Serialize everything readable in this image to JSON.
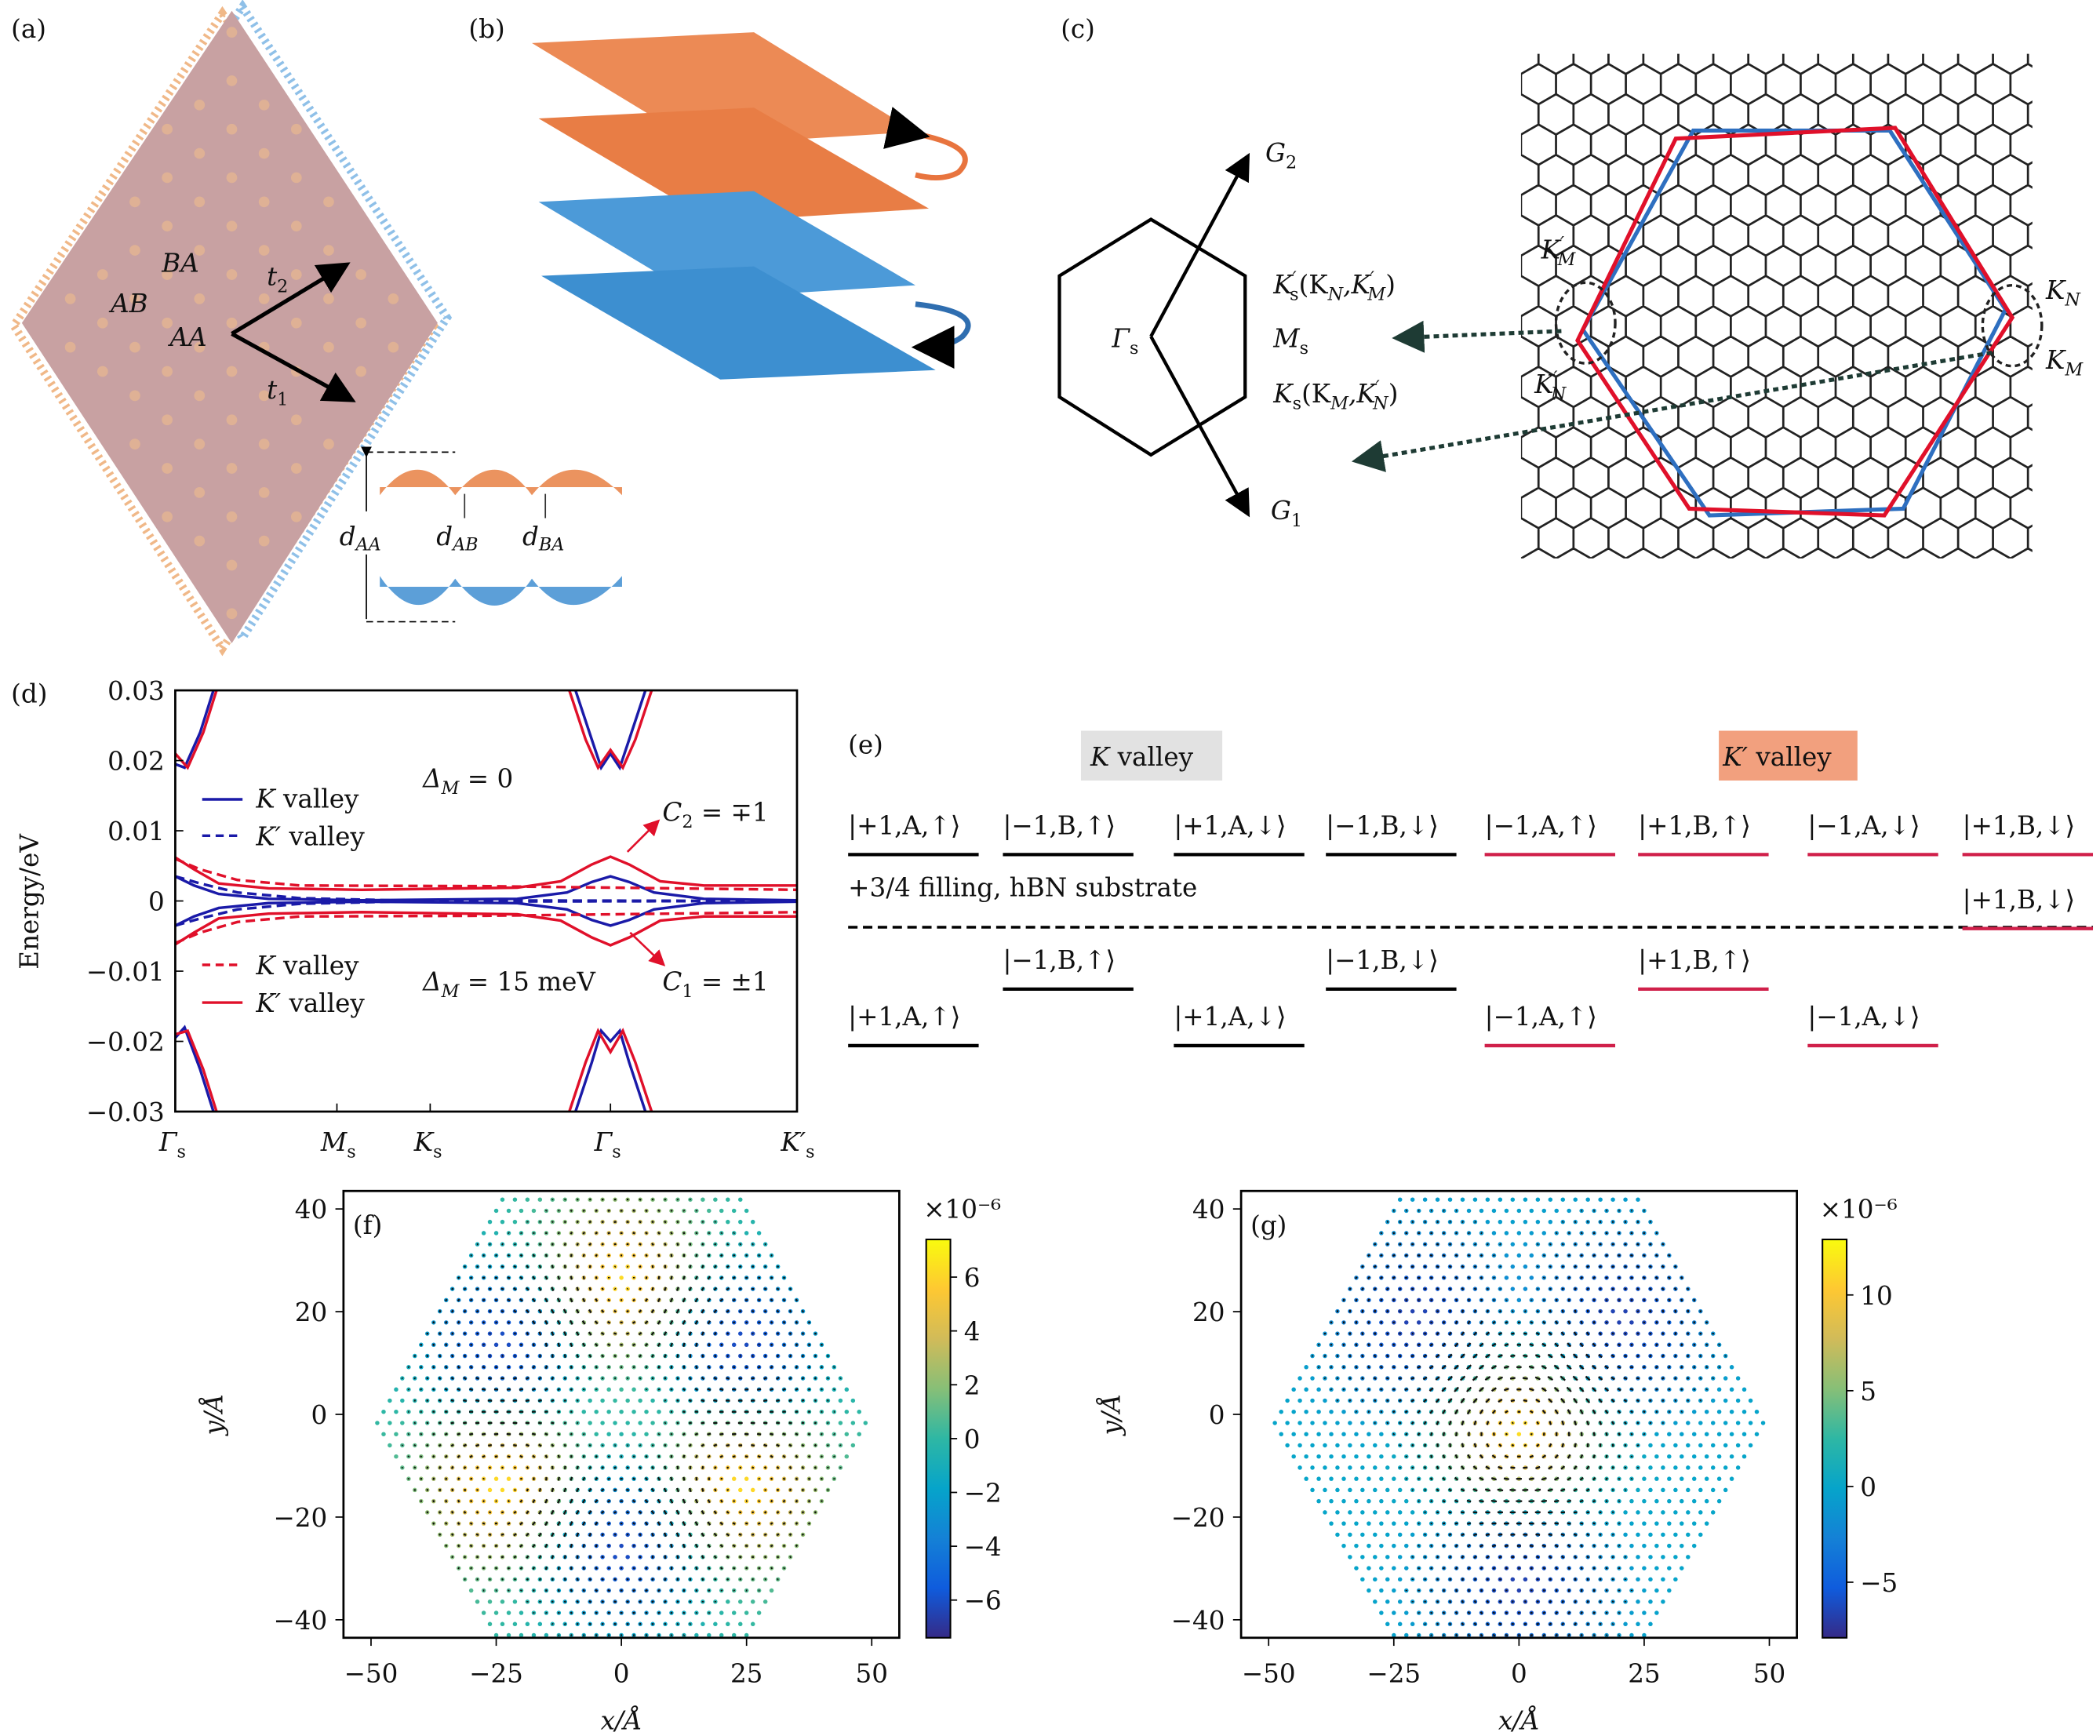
{
  "panels": {
    "a": {
      "label": "(a)",
      "regions": [
        "BA",
        "AB",
        "AA"
      ],
      "vectors": [
        "t",
        "2",
        "t",
        "1"
      ],
      "distances": {
        "d_AA": [
          "d",
          "AA"
        ],
        "d_AB": [
          "d",
          "AB"
        ],
        "d_BA": [
          "d",
          "BA"
        ]
      }
    },
    "b": {
      "label": "(b)"
    },
    "c": {
      "label": "(c)",
      "G2": [
        "G",
        "2"
      ],
      "G1": [
        "G",
        "1"
      ],
      "gamma": [
        "Γ",
        "s"
      ],
      "Kps": [
        "K",
        "′",
        "s",
        "(K",
        "N",
        ",K",
        "′",
        "M",
        ")"
      ],
      "Ms": [
        "M",
        "s"
      ],
      "Ks": [
        "K",
        "s",
        "(K",
        "M",
        ",K",
        "′",
        "N",
        ")"
      ],
      "KpM": [
        "K",
        "′",
        "M"
      ],
      "KpN": [
        "K",
        "′",
        "N"
      ],
      "KN": [
        "K",
        "N"
      ],
      "KM": [
        "K",
        "M"
      ]
    },
    "d": {
      "label": "(d)",
      "legend": {
        "delta0": [
          "Δ",
          "M",
          " = 0"
        ],
        "delta15": [
          "Δ",
          "M",
          " = 15 meV"
        ],
        "k_valley": [
          "K",
          " valley"
        ],
        "kp_valley": [
          "K′",
          " valley"
        ]
      },
      "C2": [
        "C",
        "2",
        " = ∓1"
      ],
      "C1": [
        "C",
        "1",
        " = ±1"
      ]
    },
    "e": {
      "label": "(e)",
      "k_valley": [
        "K",
        " valley"
      ],
      "kp_valley": [
        "K′",
        " valley"
      ],
      "filling": "+3/4 filling, hBN substrate",
      "top_row": [
        "|+1,A,↑⟩",
        "|−1,B,↑⟩",
        "|+1,A,↓⟩",
        "|−1,B,↓⟩",
        "|−1,A,↑⟩",
        "|+1,B,↑⟩",
        "|−1,A,↓⟩",
        "|+1,B,↓⟩"
      ],
      "upper_state": "|+1,B,↓⟩",
      "lower_row_1": [
        "|−1,B,↑⟩",
        "|−1,B,↓⟩",
        "|+1,B,↑⟩"
      ],
      "lower_row_2": [
        "|+1,A,↑⟩",
        "|+1,A,↓⟩",
        "|−1,A,↑⟩",
        "|−1,A,↓⟩"
      ]
    },
    "f": {
      "label": "(f)"
    },
    "g": {
      "label": "(g)"
    }
  },
  "colors": {
    "k_valley": "#1a1aa8",
    "kp_valley": "#e0102a",
    "orange": "#e8834e",
    "blue": "#3d8fd0",
    "k_box": "#e2e2e2",
    "kp_box": "#f2a07e"
  },
  "chart_data": [
    {
      "type": "line",
      "panel": "d",
      "ylabel": "Energy/eV",
      "xlabel": "",
      "ylim": [
        -0.03,
        0.03
      ],
      "yticks": [
        "0.03",
        "0.02",
        "0.01",
        "0",
        "−0.01",
        "−0.02",
        "−0.03"
      ],
      "ytick_values": [
        0.03,
        0.02,
        0.01,
        0,
        -0.01,
        -0.02,
        -0.03
      ],
      "xticks": [
        [
          "Γ",
          "s"
        ],
        [
          "M",
          "s"
        ],
        [
          "K",
          "s"
        ],
        [
          "Γ",
          "s"
        ],
        [
          "K′",
          "s"
        ]
      ],
      "xtick_values": [
        0,
        0.26,
        0.41,
        0.7,
        1
      ],
      "xlim": [
        0,
        1
      ],
      "series": [
        {
          "name": "K valley, Δ_M=0",
          "color": "#1a1aa8",
          "dash": false,
          "points": [
            [
              0,
              0.0035
            ],
            [
              0.03,
              0.0022
            ],
            [
              0.07,
              0.001
            ],
            [
              0.15,
              0.0003
            ],
            [
              0.3,
              0.0001
            ],
            [
              0.55,
              0.0003
            ],
            [
              0.63,
              0.0012
            ],
            [
              0.67,
              0.0027
            ],
            [
              0.7,
              0.0035
            ],
            [
              0.73,
              0.0027
            ],
            [
              0.77,
              0.0012
            ],
            [
              0.85,
              0.0003
            ],
            [
              1,
              0.0001
            ]
          ]
        },
        {
          "name": "K valley, Δ_M=0 (lower)",
          "color": "#1a1aa8",
          "dash": false,
          "points": [
            [
              0,
              -0.0035
            ],
            [
              0.03,
              -0.0022
            ],
            [
              0.07,
              -0.001
            ],
            [
              0.15,
              -0.0003
            ],
            [
              0.3,
              -0.0001
            ],
            [
              0.55,
              -0.0003
            ],
            [
              0.63,
              -0.0012
            ],
            [
              0.67,
              -0.0027
            ],
            [
              0.7,
              -0.0035
            ],
            [
              0.73,
              -0.0027
            ],
            [
              0.77,
              -0.0012
            ],
            [
              0.85,
              -0.0003
            ],
            [
              1,
              -0.0001
            ]
          ]
        },
        {
          "name": "K' valley, Δ_M=0",
          "color": "#1a1aa8",
          "dash": true,
          "points": [
            [
              0,
              0.0035
            ],
            [
              0.04,
              0.0025
            ],
            [
              0.1,
              0.0012
            ],
            [
              0.2,
              0.0004
            ],
            [
              0.35,
              0.0001
            ],
            [
              1,
              0
            ]
          ]
        },
        {
          "name": "K' valley, Δ_M=0 (lower)",
          "color": "#1a1aa8",
          "dash": true,
          "points": [
            [
              0,
              -0.0035
            ],
            [
              0.04,
              -0.0025
            ],
            [
              0.1,
              -0.0012
            ],
            [
              0.2,
              -0.0004
            ],
            [
              0.35,
              -0.0001
            ],
            [
              1,
              0
            ]
          ]
        },
        {
          "name": "K valley, Δ_M=15 meV",
          "color": "#e0102a",
          "dash": true,
          "points": [
            [
              0,
              0.006
            ],
            [
              0.04,
              0.0045
            ],
            [
              0.1,
              0.003
            ],
            [
              0.2,
              0.0022
            ],
            [
              0.5,
              0.0021
            ],
            [
              1,
              0.0016
            ]
          ]
        },
        {
          "name": "K valley, Δ_M=15 meV (lower)",
          "color": "#e0102a",
          "dash": true,
          "points": [
            [
              0,
              -0.006
            ],
            [
              0.04,
              -0.0045
            ],
            [
              0.1,
              -0.003
            ],
            [
              0.2,
              -0.0022
            ],
            [
              0.5,
              -0.0021
            ],
            [
              1,
              -0.0016
            ]
          ]
        },
        {
          "name": "K' valley, Δ_M=15 meV",
          "color": "#e0102a",
          "dash": false,
          "points": [
            [
              0,
              0.0062
            ],
            [
              0.03,
              0.0045
            ],
            [
              0.07,
              0.0025
            ],
            [
              0.15,
              0.0018
            ],
            [
              0.3,
              0.0016
            ],
            [
              0.55,
              0.0019
            ],
            [
              0.62,
              0.0028
            ],
            [
              0.67,
              0.0052
            ],
            [
              0.7,
              0.0063
            ],
            [
              0.73,
              0.0052
            ],
            [
              0.78,
              0.0028
            ],
            [
              0.85,
              0.0022
            ],
            [
              1,
              0.0022
            ]
          ]
        },
        {
          "name": "K' valley, Δ_M=15 meV (lower)",
          "color": "#e0102a",
          "dash": false,
          "points": [
            [
              0,
              -0.0062
            ],
            [
              0.03,
              -0.0045
            ],
            [
              0.07,
              -0.0025
            ],
            [
              0.15,
              -0.0018
            ],
            [
              0.3,
              -0.0016
            ],
            [
              0.55,
              -0.0019
            ],
            [
              0.62,
              -0.0028
            ],
            [
              0.67,
              -0.0052
            ],
            [
              0.7,
              -0.0063
            ],
            [
              0.73,
              -0.0052
            ],
            [
              0.78,
              -0.0028
            ],
            [
              0.85,
              -0.0022
            ],
            [
              1,
              -0.0022
            ]
          ]
        },
        {
          "name": "remote band Γs upper (blue)",
          "color": "#1a1aa8",
          "dash": false,
          "points": [
            [
              0,
              0.0195
            ],
            [
              0.015,
              0.019
            ],
            [
              0.04,
              0.024
            ],
            [
              0.065,
              0.031
            ]
          ]
        },
        {
          "name": "remote band Γs upper (red)",
          "color": "#e0102a",
          "dash": false,
          "points": [
            [
              0,
              0.021
            ],
            [
              0.02,
              0.019
            ],
            [
              0.045,
              0.024
            ],
            [
              0.07,
              0.031
            ]
          ]
        },
        {
          "name": "remote band Γs lower (blue)",
          "color": "#1a1aa8",
          "dash": false,
          "points": [
            [
              0,
              -0.0195
            ],
            [
              0.015,
              -0.018
            ],
            [
              0.04,
              -0.024
            ],
            [
              0.065,
              -0.031
            ]
          ]
        },
        {
          "name": "remote band Γs lower (red)",
          "color": "#e0102a",
          "dash": false,
          "points": [
            [
              0,
              -0.019
            ],
            [
              0.02,
              -0.0185
            ],
            [
              0.045,
              -0.024
            ],
            [
              0.07,
              -0.031
            ]
          ]
        },
        {
          "name": "remote band Γ mid upper (blue)",
          "color": "#1a1aa8",
          "dash": false,
          "points": [
            [
              0.64,
              0.031
            ],
            [
              0.67,
              0.023
            ],
            [
              0.685,
              0.019
            ],
            [
              0.7,
              0.021
            ],
            [
              0.715,
              0.019
            ],
            [
              0.73,
              0.023
            ],
            [
              0.76,
              0.031
            ]
          ]
        },
        {
          "name": "remote band Γ mid upper (red)",
          "color": "#e0102a",
          "dash": false,
          "points": [
            [
              0.63,
              0.031
            ],
            [
              0.66,
              0.023
            ],
            [
              0.68,
              0.019
            ],
            [
              0.7,
              0.0215
            ],
            [
              0.72,
              0.019
            ],
            [
              0.74,
              0.023
            ],
            [
              0.77,
              0.031
            ]
          ]
        },
        {
          "name": "remote band Γ mid lower (blue)",
          "color": "#1a1aa8",
          "dash": false,
          "points": [
            [
              0.64,
              -0.031
            ],
            [
              0.67,
              -0.023
            ],
            [
              0.685,
              -0.0185
            ],
            [
              0.7,
              -0.02
            ],
            [
              0.715,
              -0.0185
            ],
            [
              0.73,
              -0.023
            ],
            [
              0.76,
              -0.031
            ]
          ]
        },
        {
          "name": "remote band Γ mid lower (red)",
          "color": "#e0102a",
          "dash": false,
          "points": [
            [
              0.63,
              -0.031
            ],
            [
              0.66,
              -0.023
            ],
            [
              0.68,
              -0.0185
            ],
            [
              0.7,
              -0.0215
            ],
            [
              0.72,
              -0.0185
            ],
            [
              0.74,
              -0.023
            ],
            [
              0.77,
              -0.031
            ]
          ]
        }
      ]
    },
    {
      "type": "scatter",
      "panel": "f",
      "title": "",
      "xlabel": "x/Å",
      "ylabel": "y/Å",
      "xlim": [
        -55.5,
        55.5
      ],
      "ylim": [
        -43.5,
        43.5
      ],
      "xticks": [
        -50,
        -25,
        0,
        25,
        50
      ],
      "xtick_labels": [
        "−50",
        "−25",
        "0",
        "25",
        "50"
      ],
      "yticks": [
        40,
        20,
        0,
        -20,
        -40
      ],
      "ytick_labels": [
        "40",
        "20",
        "0",
        "−20",
        "−40"
      ],
      "colorbar": {
        "scale_label": "×10⁻⁶",
        "range": [
          -7.4,
          7.4
        ],
        "ticks": [
          6,
          4,
          2,
          0,
          -2,
          -4,
          -6
        ],
        "tick_labels": [
          "6",
          "4",
          "2",
          "0",
          "−2",
          "−4",
          "−6"
        ]
      },
      "hexagon_radius": 50,
      "extrema": [
        {
          "x": 0,
          "y": 25,
          "value": 7
        },
        {
          "x": -23,
          "y": -13,
          "value": 7
        },
        {
          "x": 23,
          "y": -13,
          "value": 7
        },
        {
          "x": -23,
          "y": 13,
          "value": -7
        },
        {
          "x": 23,
          "y": 13,
          "value": -7
        },
        {
          "x": 0,
          "y": -25,
          "value": -7
        }
      ]
    },
    {
      "type": "scatter",
      "panel": "g",
      "title": "",
      "xlabel": "x/Å",
      "ylabel": "y/Å",
      "xlim": [
        -55.5,
        55.5
      ],
      "ylim": [
        -43.5,
        43.5
      ],
      "xticks": [
        -50,
        -25,
        0,
        25,
        50
      ],
      "xtick_labels": [
        "−50",
        "−25",
        "0",
        "25",
        "50"
      ],
      "yticks": [
        40,
        20,
        0,
        -20,
        -40
      ],
      "ytick_labels": [
        "40",
        "20",
        "0",
        "−20",
        "−40"
      ],
      "colorbar": {
        "scale_label": "×10⁻⁶",
        "range": [
          -7.9,
          12.9
        ],
        "ticks": [
          10,
          5,
          0,
          -5
        ],
        "tick_labels": [
          "10",
          "5",
          "0",
          "−5"
        ]
      },
      "hexagon_radius": 50,
      "extrema": [
        {
          "x": 0,
          "y": -3,
          "value": 12
        },
        {
          "x": -20,
          "y": 18,
          "value": -7
        },
        {
          "x": 20,
          "y": 18,
          "value": -7
        },
        {
          "x": 0,
          "y": -32,
          "value": -7
        }
      ]
    }
  ]
}
